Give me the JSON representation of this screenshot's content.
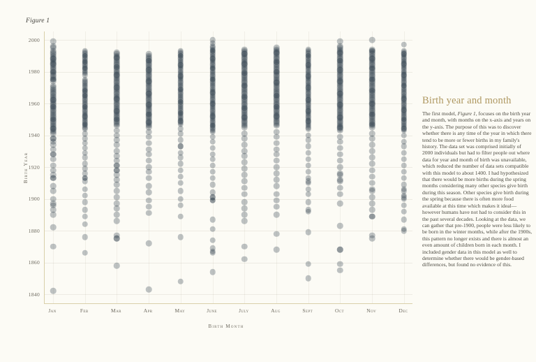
{
  "page": {
    "background": "#fcfbf5",
    "accent_color": "#ae9760"
  },
  "panel": {
    "heading": "Birth year and month",
    "paragraph_before": "The first model, ",
    "figure_ref": "Figure 1",
    "paragraph_after": ", focuses on the birth year and month, with months on the x-axis and years on the y-axis. The purpose of this was to discover whether there is any time of the year in which there tend to be more or fewer births in my family's history. The data set was comprised initially of 2000 individuals but had to filter people out where data for year and month of birth was unavailable, which reduced the number of data sets compatible with this model to about 1400. I had hypothesized that there would be more births during the spring months considering many other species give birth during this season. Other species give birth during the spring because there is often more food available at this time which makes it ideal—however humans have not had to consider this in the past several decades. Looking at the data, we can gather that pre-1900, people were less likely to be born in the winter months, while after the 1900s, this pattern no longer exists and there is almost an even amount of children born in each month. I included gender data in this model as well to determine whether there would be gender-based differences, but found no evidence of this."
  },
  "chart_data": {
    "type": "scatter",
    "figure_label": "Figure 1",
    "xlabel": "Birth Month",
    "ylabel": "Birth Year",
    "y_ticks": [
      2000,
      1980,
      1960,
      1940,
      1920,
      1900,
      1880,
      1860,
      1840
    ],
    "ylim": [
      1834,
      2005
    ],
    "grid": true,
    "point_color": "#2b3a48",
    "point_opacity": 0.3,
    "months": [
      {
        "label": "Jan",
        "runs": [
          [
            1941,
            1971
          ],
          [
            1974,
            1993
          ]
        ],
        "years": [
          1999,
          1996,
          1995,
          1988,
          1985,
          1980,
          1975,
          1962,
          1958,
          1950,
          1944,
          1938,
          1938,
          1936,
          1934,
          1931,
          1928,
          1928,
          1925,
          1921,
          1918,
          1915,
          1913,
          1913,
          1908,
          1905,
          1900,
          1897,
          1896,
          1893,
          1890,
          1882,
          1870,
          1842
        ]
      },
      {
        "label": "Feb",
        "runs": [
          [
            1944,
            1975
          ],
          [
            1978,
            1993
          ]
        ],
        "years": [
          1990,
          1986,
          1982,
          1968,
          1965,
          1958,
          1952,
          1947,
          1941,
          1938,
          1935,
          1932,
          1929,
          1926,
          1922,
          1919,
          1916,
          1913,
          1913,
          1911,
          1906,
          1902,
          1898,
          1893,
          1889,
          1884,
          1876,
          1866
        ]
      },
      {
        "label": "Mar",
        "runs": [
          [
            1946,
            1992
          ]
        ],
        "years": [
          1989,
          1983,
          1978,
          1970,
          1963,
          1955,
          1950,
          1943,
          1940,
          1937,
          1934,
          1930,
          1927,
          1924,
          1921,
          1921,
          1918,
          1918,
          1915,
          1912,
          1909,
          1905,
          1901,
          1897,
          1894,
          1890,
          1886,
          1877,
          1875,
          1875,
          1858
        ]
      },
      {
        "label": "Apr",
        "runs": [
          [
            1945,
            1991
          ]
        ],
        "years": [
          1987,
          1981,
          1974,
          1966,
          1959,
          1953,
          1948,
          1942,
          1939,
          1935,
          1931,
          1928,
          1924,
          1920,
          1917,
          1913,
          1908,
          1904,
          1899,
          1895,
          1891,
          1872,
          1843
        ]
      },
      {
        "label": "May",
        "runs": [
          [
            1947,
            1993
          ]
        ],
        "years": [
          1990,
          1984,
          1977,
          1969,
          1961,
          1954,
          1949,
          1944,
          1941,
          1937,
          1933,
          1933,
          1929,
          1926,
          1922,
          1918,
          1914,
          1910,
          1905,
          1900,
          1896,
          1889,
          1876,
          1848
        ]
      },
      {
        "label": "June",
        "runs": [
          [
            1942,
            1996
          ]
        ],
        "years": [
          2000,
          1998,
          1993,
          1988,
          1982,
          1975,
          1967,
          1960,
          1952,
          1946,
          1939,
          1936,
          1932,
          1928,
          1925,
          1921,
          1917,
          1913,
          1909,
          1904,
          1901,
          1901,
          1899,
          1899,
          1887,
          1881,
          1874,
          1869,
          1867,
          1866,
          1854
        ]
      },
      {
        "label": "July",
        "runs": [
          [
            1945,
            1994
          ]
        ],
        "years": [
          1991,
          1985,
          1979,
          1971,
          1964,
          1957,
          1951,
          1941,
          1938,
          1934,
          1930,
          1927,
          1923,
          1919,
          1915,
          1911,
          1907,
          1903,
          1898,
          1894,
          1890,
          1886,
          1870,
          1862
        ]
      },
      {
        "label": "Aug",
        "runs": [
          [
            1946,
            1995
          ]
        ],
        "years": [
          1992,
          1986,
          1980,
          1973,
          1965,
          1958,
          1952,
          1942,
          1939,
          1935,
          1931,
          1928,
          1924,
          1920,
          1916,
          1912,
          1908,
          1903,
          1899,
          1895,
          1890,
          1878,
          1868
        ]
      },
      {
        "label": "Sept",
        "runs": [
          [
            1944,
            1994
          ]
        ],
        "years": [
          1990,
          1984,
          1977,
          1970,
          1962,
          1955,
          1949,
          1940,
          1937,
          1933,
          1929,
          1925,
          1921,
          1917,
          1913,
          1911,
          1910,
          1906,
          1903,
          1898,
          1893,
          1892,
          1879,
          1859,
          1850
        ]
      },
      {
        "label": "Oct",
        "runs": [
          [
            1943,
            1996
          ]
        ],
        "years": [
          1999,
          1992,
          1987,
          1981,
          1974,
          1966,
          1959,
          1951,
          1945,
          1939,
          1936,
          1932,
          1928,
          1924,
          1920,
          1916,
          1915,
          1912,
          1911,
          1907,
          1903,
          1897,
          1883,
          1868,
          1868,
          1859,
          1855
        ]
      },
      {
        "label": "Nov",
        "runs": [
          [
            1945,
            1994
          ]
        ],
        "years": [
          2000,
          1993,
          1988,
          1982,
          1975,
          1968,
          1960,
          1953,
          1947,
          1941,
          1938,
          1934,
          1930,
          1926,
          1922,
          1918,
          1914,
          1910,
          1906,
          1905,
          1901,
          1897,
          1893,
          1889,
          1889,
          1877,
          1875
        ]
      },
      {
        "label": "Dec",
        "runs": [
          [
            1943,
            1993
          ]
        ],
        "years": [
          1997,
          1991,
          1985,
          1978,
          1971,
          1963,
          1956,
          1950,
          1944,
          1940,
          1936,
          1933,
          1929,
          1925,
          1921,
          1917,
          1913,
          1909,
          1906,
          1905,
          1902,
          1901,
          1900,
          1896,
          1892,
          1887,
          1881,
          1880
        ]
      }
    ]
  }
}
